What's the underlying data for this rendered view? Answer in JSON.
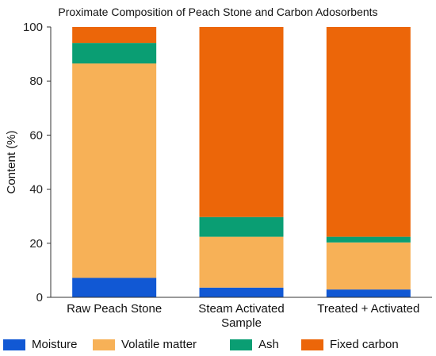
{
  "chart_data": {
    "type": "bar",
    "stacked": true,
    "title": "Proximate Composition of Peach Stone and Carbon Adosorbents",
    "xlabel": "",
    "ylabel": "Content (%)",
    "ylim": [
      0,
      100
    ],
    "yticks": [
      0,
      20,
      40,
      60,
      80,
      100
    ],
    "grid": false,
    "legend_position": "bottom",
    "categories": [
      [
        "Raw Peach Stone"
      ],
      [
        "Steam Activated",
        "Sample"
      ],
      [
        "Treated + Activated"
      ]
    ],
    "series": [
      {
        "name": "Moisture",
        "color": "#1158d4",
        "values": [
          7.2,
          3.6,
          2.9
        ]
      },
      {
        "name": "Volatile matter",
        "color": "#f7b157",
        "values": [
          79.3,
          18.8,
          17.4
        ]
      },
      {
        "name": "Ash",
        "color": "#0a9e73",
        "values": [
          7.6,
          7.3,
          2.1
        ]
      },
      {
        "name": "Fixed carbon",
        "color": "#ec6609",
        "values": [
          5.9,
          70.3,
          77.6
        ]
      }
    ]
  }
}
